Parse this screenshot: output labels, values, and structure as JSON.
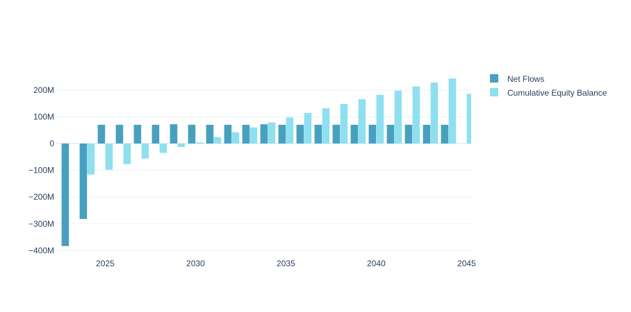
{
  "chart_data": {
    "type": "bar",
    "x": [
      2023,
      2024,
      2025,
      2026,
      2027,
      2028,
      2029,
      2030,
      2031,
      2032,
      2033,
      2034,
      2035,
      2036,
      2037,
      2038,
      2039,
      2040,
      2041,
      2042,
      2043,
      2044,
      2045
    ],
    "series": [
      {
        "name": "Net Flows",
        "color": "#48a0c0",
        "values": [
          -383,
          -282,
          70,
          70,
          70,
          70,
          72,
          70,
          70,
          70,
          70,
          72,
          70,
          70,
          70,
          70,
          70,
          70,
          70,
          70,
          70,
          70,
          null
        ]
      },
      {
        "name": "Cumulative Equity Balance",
        "color": "#8ee0f0",
        "values": [
          null,
          -116,
          -98,
          -77,
          -56,
          -35,
          -13,
          4,
          24,
          42,
          60,
          79,
          97,
          114,
          132,
          148,
          166,
          182,
          198,
          213,
          228,
          243,
          186
        ]
      }
    ],
    "ylim": [
      -400,
      260
    ],
    "ytick_values": [
      200,
      100,
      0,
      -100,
      -200,
      -300,
      -400
    ],
    "ytick_labels": [
      "200M",
      "100M",
      "0",
      "−100M",
      "−200M",
      "−300M",
      "−400M"
    ],
    "xtick_values": [
      2025,
      2030,
      2035,
      2040,
      2045
    ],
    "xtick_labels": [
      "2025",
      "2030",
      "2035",
      "2040",
      "2045"
    ],
    "title": "",
    "xlabel": "",
    "ylabel": "",
    "legend_position": "top-right",
    "grid": true
  }
}
